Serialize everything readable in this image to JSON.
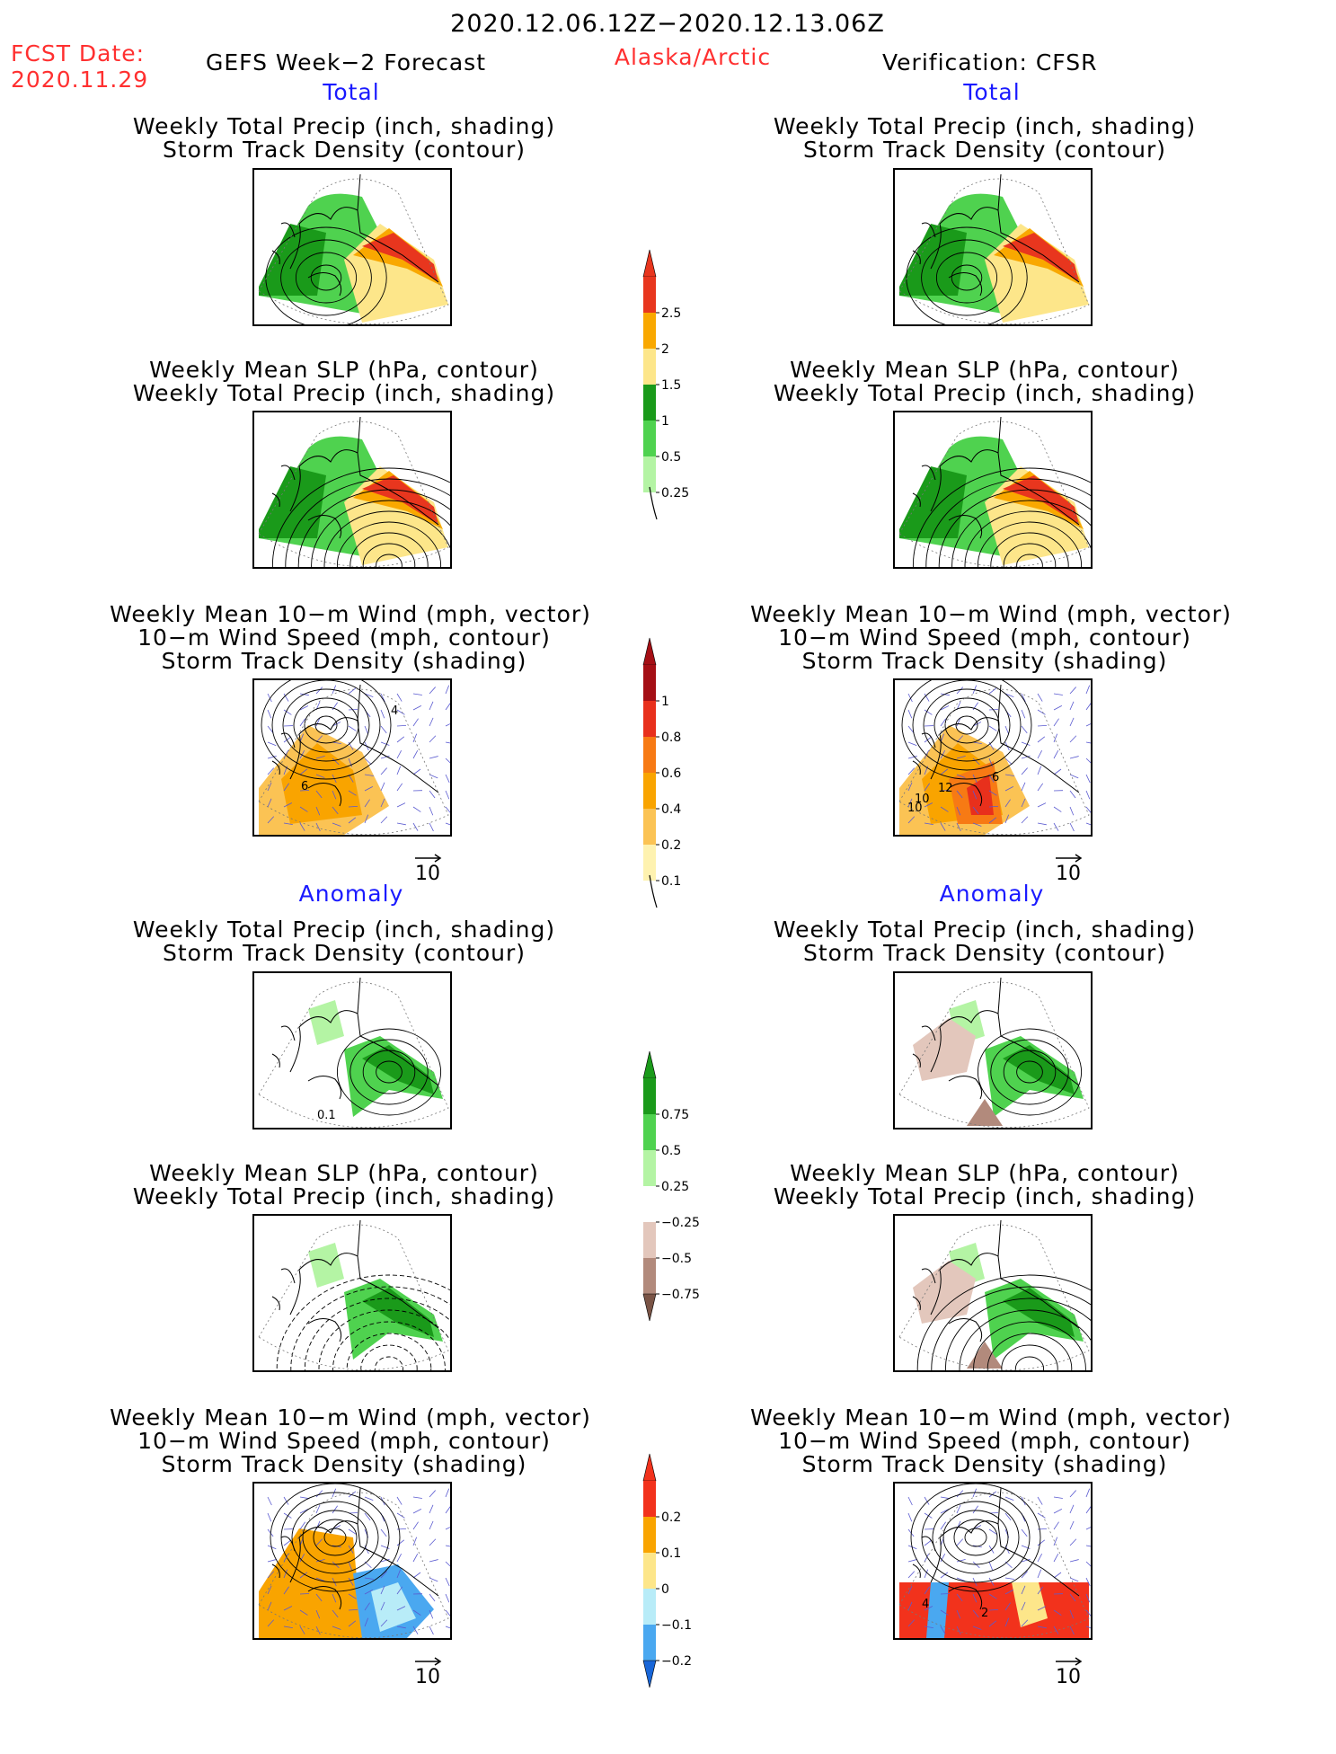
{
  "header": {
    "date_range": "2020.12.06.12Z−2020.12.13.06Z",
    "fcst_label": "FCST Date:",
    "fcst_date": "2020.11.29",
    "product": "GEFS Week−2 Forecast",
    "region": "Alaska/Arctic",
    "verification": "Verification: CFSR"
  },
  "sections": {
    "total_left": "Total",
    "total_right": "Total",
    "anomaly_left": "Anomaly",
    "anomaly_right": "Anomaly"
  },
  "titles": {
    "precip_track": [
      "Weekly Total Precip (inch, shading)",
      "Storm Track Density (contour)"
    ],
    "slp_precip": [
      "Weekly Mean SLP (hPa, contour)",
      "Weekly Total Precip (inch, shading)"
    ],
    "wind": [
      "Weekly Mean 10−m Wind (mph, vector)",
      "10−m Wind Speed (mph, contour)",
      "Storm Track Density (shading)"
    ]
  },
  "vector_ref": "10",
  "map_labels": {
    "wind_fcst_total": [
      "4",
      "6"
    ],
    "wind_ver_total": [
      "6",
      "12",
      "10",
      "10"
    ],
    "precip_fcst_anom": [
      "0.1"
    ],
    "wind_ver_anom": [
      "4",
      "2"
    ]
  },
  "colorbars": {
    "precip_total": {
      "labels": [
        "2.5",
        "2",
        "1.5",
        "1",
        "0.5",
        "0.25"
      ],
      "colors": [
        "#e8361e",
        "#f9a800",
        "#fde68a",
        "#1a9a1a",
        "#4fd24f",
        "#b4f4a4"
      ]
    },
    "track_total": {
      "labels": [
        "1",
        "0.8",
        "0.6",
        "0.4",
        "0.2",
        "0.1"
      ],
      "colors": [
        "#a50f15",
        "#e8301c",
        "#f77a14",
        "#f9a400",
        "#fbc354",
        "#fef2b0"
      ]
    },
    "precip_anom": {
      "labels": [
        "0.75",
        "0.5",
        "0.25",
        "−0.25",
        "−0.5",
        "−0.75"
      ],
      "colors": [
        "#1a9a1a",
        "#4fd24f",
        "#b4f4a4",
        "#ffffff",
        "#e3c7bc",
        "#b28a7c",
        "#7a5446"
      ]
    },
    "track_anom": {
      "labels": [
        "0.2",
        "0.1",
        "0",
        "−0.1",
        "−0.2"
      ],
      "colors": [
        "#f2321c",
        "#f9a400",
        "#fde68a",
        "#b8ecf8",
        "#4aa8f0",
        "#1866d8"
      ]
    }
  },
  "colors": {
    "title_red": "#ff3030",
    "section_blue": "#1a1aff",
    "vector_blue": "#5a5ad0"
  }
}
